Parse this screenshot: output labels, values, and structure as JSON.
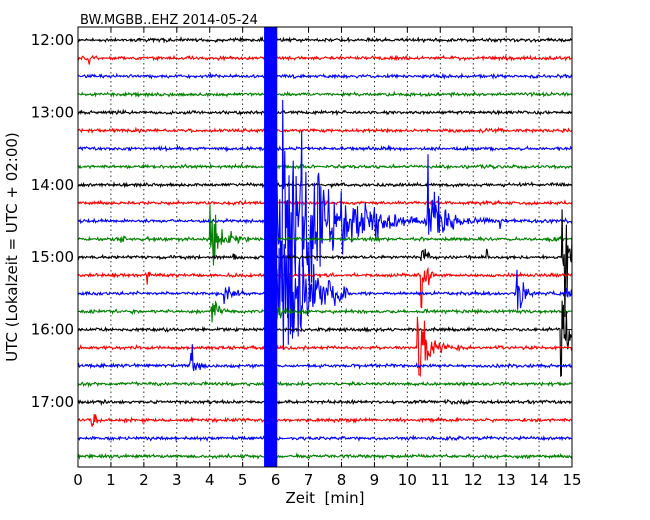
{
  "chart_data": {
    "type": "line",
    "title": "BW.MGBB..EHZ 2014-05-24",
    "xlabel": "Zeit  [min]",
    "ylabel": "UTC (Lokalzeit = UTC + 02:00)",
    "xlim": [
      0,
      15
    ],
    "x_ticks": [
      "0",
      "1",
      "2",
      "3",
      "4",
      "5",
      "6",
      "7",
      "8",
      "9",
      "10",
      "11",
      "12",
      "13",
      "14",
      "15"
    ],
    "y_ticks": [
      "12:00",
      "13:00",
      "14:00",
      "15:00",
      "16:00",
      "17:00"
    ],
    "vertical_grid": "dotted, every 1 min",
    "trace_interval_min": 15,
    "trace_count": 24,
    "trace_colors": [
      "#000000",
      "#ff0000",
      "#0000ff",
      "#008000"
    ],
    "events": [
      {
        "name": "large teleseismic event",
        "start_min": 5.7,
        "color": "#0000ff"
      },
      {
        "name": "local event 1",
        "time": "14:45",
        "start_min": 4.0
      },
      {
        "name": "local event 2",
        "time": "15:45",
        "start_min": 10.4
      },
      {
        "name": "local event 3",
        "time": "16:30",
        "start_min": 3.4
      },
      {
        "name": "local event 4",
        "time": "16:00",
        "start_min": 14.7
      }
    ]
  }
}
